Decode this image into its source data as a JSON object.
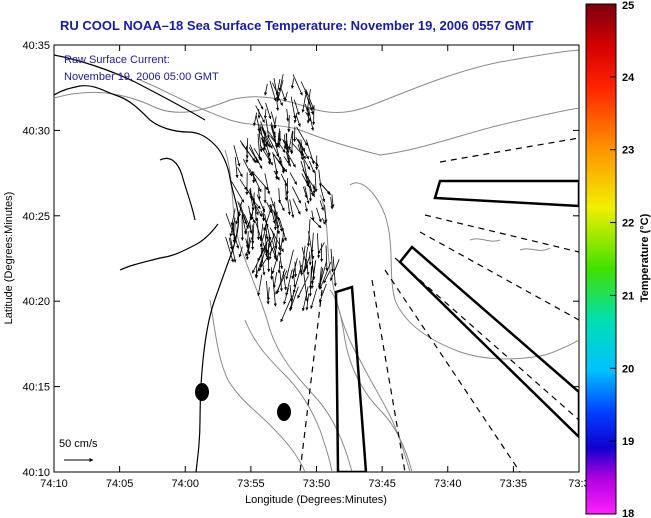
{
  "header": {
    "title": "RU COOL  NOAA–18  Sea Surface Temperature:  November 19, 2006 0557 GMT"
  },
  "overlay": {
    "line1": "Raw Surface Current:",
    "line2": "November 19, 2006 05:00 GMT"
  },
  "scale": {
    "label": "50 cm/s"
  },
  "axes": {
    "xlabel": "Longitude (Degrees:Minutes)",
    "ylabel": "Latitude (Degrees:Minutes)",
    "xticks": [
      "74:10",
      "74:05",
      "74:00",
      "73:55",
      "73:50",
      "73:45",
      "73:40",
      "73:35",
      "73:3"
    ],
    "yticks": [
      "40:35",
      "40:30",
      "40:25",
      "40:20",
      "40:15",
      "40:10"
    ]
  },
  "colorbar": {
    "label": "Temperature (°C)",
    "ticks": [
      "25",
      "24",
      "23",
      "22",
      "21",
      "20",
      "19",
      "18"
    ],
    "colors": [
      "#8b0000",
      "#ff0000",
      "#ff8c00",
      "#ffff00",
      "#00ff00",
      "#00ffff",
      "#0000ff",
      "#ff00ff"
    ]
  }
}
